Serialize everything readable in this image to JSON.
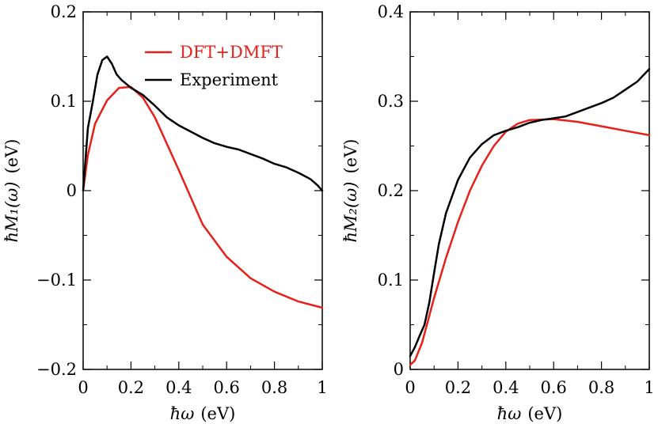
{
  "chart_data": [
    {
      "type": "line",
      "panel": "left",
      "xlabel_main": "ħω",
      "xlabel_unit": "(eV)",
      "ylabel_main": "ħM₁(ω)",
      "ylabel_unit": "(eV)",
      "xlim": [
        0,
        1
      ],
      "ylim": [
        -0.2,
        0.2
      ],
      "xticks": [
        0,
        0.2,
        0.4,
        0.6,
        0.8,
        1
      ],
      "xtick_labels": [
        "0",
        "0.2",
        "0.4",
        "0.6",
        "0.8",
        "1"
      ],
      "yticks": [
        -0.2,
        -0.1,
        0,
        0.1,
        0.2
      ],
      "ytick_labels": [
        "−0.2",
        "−0.1",
        "0",
        "0.1",
        "0.2"
      ],
      "legend": {
        "placement": "top-right"
      },
      "series": [
        {
          "name": "DFT+DMFT",
          "color": "#e8201a",
          "x": [
            0,
            0.02,
            0.05,
            0.1,
            0.15,
            0.2,
            0.25,
            0.3,
            0.4,
            0.5,
            0.6,
            0.7,
            0.8,
            0.9,
            1.0
          ],
          "y": [
            0,
            0.04,
            0.075,
            0.101,
            0.115,
            0.116,
            0.104,
            0.082,
            0.023,
            -0.038,
            -0.074,
            -0.098,
            -0.113,
            -0.124,
            -0.131
          ]
        },
        {
          "name": "Experiment",
          "color": "#000000",
          "x": [
            0,
            0.02,
            0.04,
            0.06,
            0.08,
            0.1,
            0.12,
            0.14,
            0.16,
            0.2,
            0.25,
            0.3,
            0.35,
            0.4,
            0.45,
            0.5,
            0.55,
            0.6,
            0.65,
            0.7,
            0.75,
            0.8,
            0.85,
            0.9,
            0.95,
            0.98,
            1.0
          ],
          "y": [
            0,
            0.07,
            0.099,
            0.13,
            0.146,
            0.15,
            0.142,
            0.13,
            0.124,
            0.115,
            0.107,
            0.095,
            0.082,
            0.073,
            0.066,
            0.059,
            0.053,
            0.049,
            0.046,
            0.041,
            0.036,
            0.03,
            0.026,
            0.02,
            0.013,
            0.006,
            0.0
          ]
        }
      ]
    },
    {
      "type": "line",
      "panel": "right",
      "xlabel_main": "ħω",
      "xlabel_unit": "(eV)",
      "ylabel_main": "ħM₂(ω)",
      "ylabel_unit": "(eV)",
      "xlim": [
        0,
        1
      ],
      "ylim": [
        0,
        0.4
      ],
      "xticks": [
        0,
        0.2,
        0.4,
        0.6,
        0.8,
        1
      ],
      "xtick_labels": [
        "0",
        "0.2",
        "0.4",
        "0.6",
        "0.8",
        "1"
      ],
      "yticks": [
        0,
        0.1,
        0.2,
        0.3,
        0.4
      ],
      "ytick_labels": [
        "0",
        "0.1",
        "0.2",
        "0.3",
        "0.4"
      ],
      "series": [
        {
          "name": "DFT+DMFT",
          "color": "#e8201a",
          "x": [
            0,
            0.02,
            0.05,
            0.1,
            0.15,
            0.2,
            0.25,
            0.3,
            0.35,
            0.4,
            0.45,
            0.5,
            0.6,
            0.7,
            0.8,
            0.9,
            1.0
          ],
          "y": [
            0.005,
            0.01,
            0.03,
            0.08,
            0.125,
            0.165,
            0.2,
            0.228,
            0.25,
            0.266,
            0.275,
            0.279,
            0.28,
            0.277,
            0.272,
            0.267,
            0.262
          ]
        },
        {
          "name": "Experiment",
          "color": "#000000",
          "x": [
            0,
            0.02,
            0.04,
            0.06,
            0.08,
            0.1,
            0.12,
            0.15,
            0.2,
            0.25,
            0.3,
            0.35,
            0.4,
            0.45,
            0.5,
            0.55,
            0.6,
            0.65,
            0.7,
            0.75,
            0.8,
            0.85,
            0.9,
            0.95,
            1.0
          ],
          "y": [
            0.015,
            0.025,
            0.038,
            0.05,
            0.075,
            0.108,
            0.14,
            0.175,
            0.212,
            0.237,
            0.252,
            0.262,
            0.267,
            0.271,
            0.276,
            0.279,
            0.281,
            0.283,
            0.288,
            0.293,
            0.298,
            0.304,
            0.313,
            0.322,
            0.336
          ]
        }
      ]
    }
  ]
}
